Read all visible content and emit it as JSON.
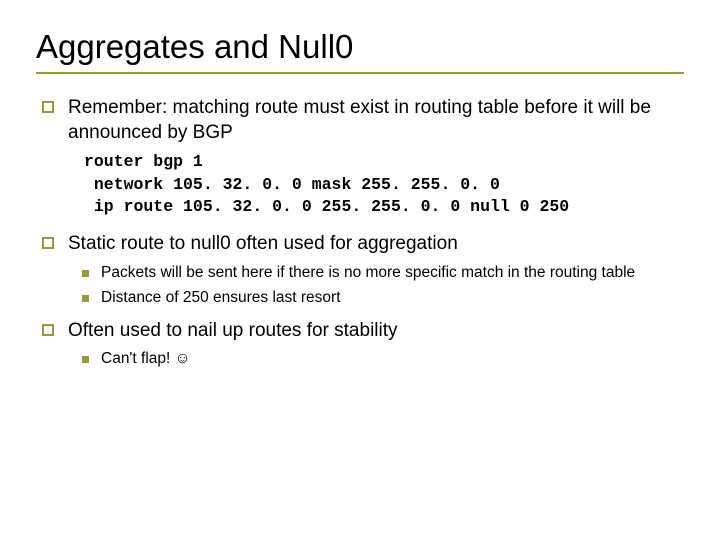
{
  "colors": {
    "accent": "#97993a",
    "text": "#000000",
    "background": "#ffffff"
  },
  "typography": {
    "title_fontsize": 33,
    "body_fontsize": 19,
    "sub_fontsize": 15.5,
    "code_fontsize": 16.5,
    "title_family": "Arial",
    "body_family": "Verdana",
    "code_family": "Courier New"
  },
  "slide": {
    "title": "Aggregates and Null0",
    "bullets": [
      {
        "text": "Remember: matching route must exist in routing table before it will be announced by BGP",
        "code": [
          "router bgp 1",
          " network 105. 32. 0. 0 mask 255. 255. 0. 0",
          " ip route 105. 32. 0. 0 255. 255. 0. 0 null 0 250"
        ]
      },
      {
        "text": "Static route to null0 often used for aggregation",
        "sub": [
          "Packets will be sent here if there is no more specific match in the routing table",
          "Distance of 250 ensures last resort"
        ]
      },
      {
        "text": "Often used to nail up routes for stability",
        "sub": [
          "Can't flap! ☺"
        ]
      }
    ]
  }
}
